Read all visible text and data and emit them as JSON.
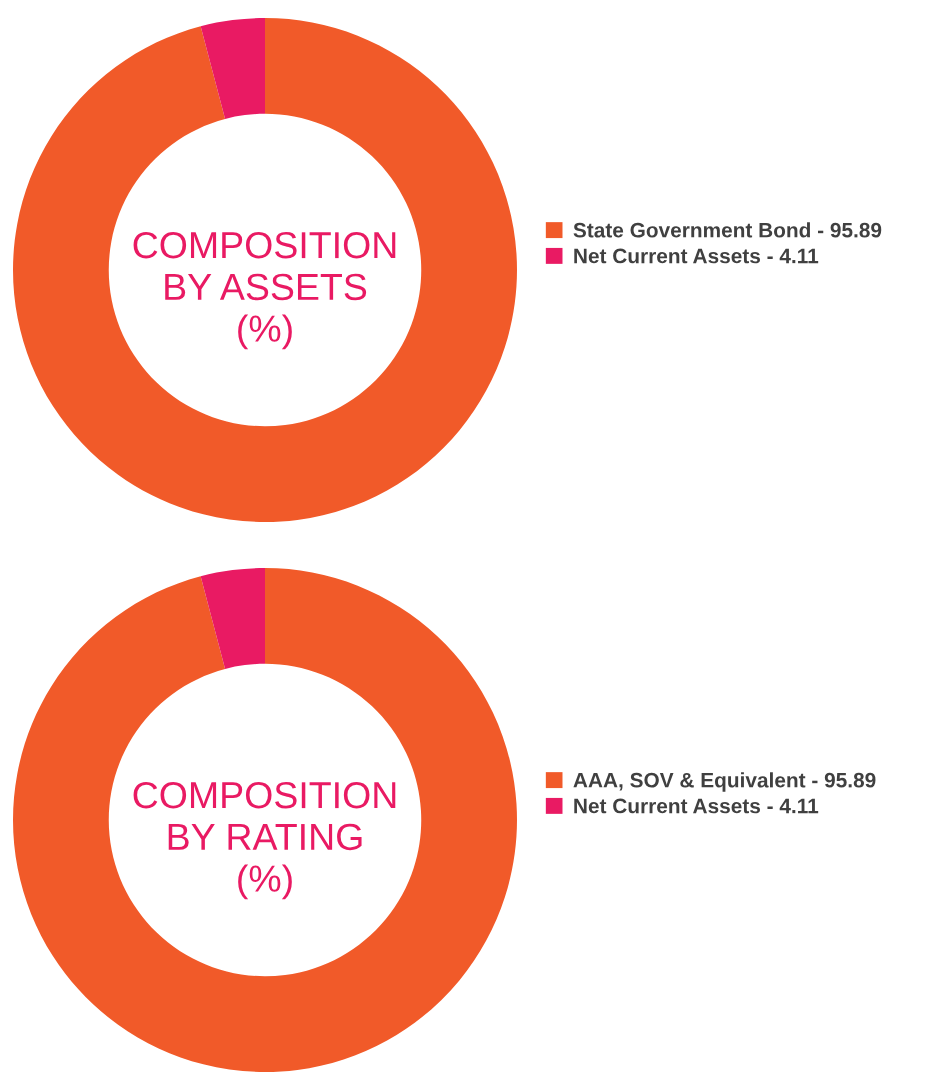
{
  "chart_data": [
    {
      "type": "donut",
      "title": "COMPOSITION\nBY ASSETS\n(%)",
      "categories": [
        "State Government Bond - 95.89",
        "Net Current Assets - 4.11"
      ],
      "values": [
        95.89,
        4.11
      ],
      "colors": [
        "#f15a29",
        "#e91a63"
      ],
      "legend": "right"
    },
    {
      "type": "donut",
      "title": "COMPOSITION\nBY RATING\n(%)",
      "categories": [
        "AAA, SOV & Equivalent - 95.89",
        "Net Current Assets - 4.11"
      ],
      "values": [
        95.89,
        4.11
      ],
      "colors": [
        "#f15a29",
        "#e91a63"
      ],
      "legend": "right"
    }
  ]
}
